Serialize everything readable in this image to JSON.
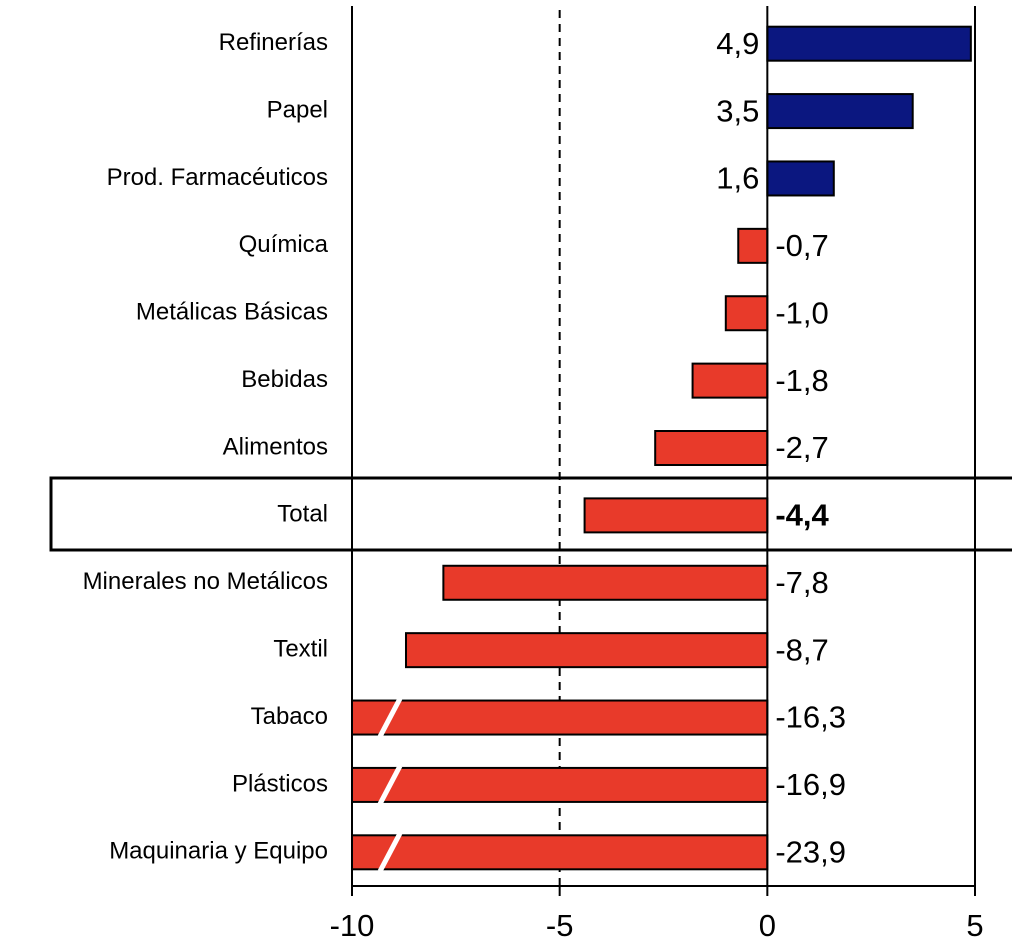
{
  "chart_data": {
    "type": "barh",
    "categories": [
      "Refinerías",
      "Papel",
      "Prod. Farmacéuticos",
      "Química",
      "Metálicas Básicas",
      "Bebidas",
      "Alimentos",
      "Total",
      "Minerales no Metálicos",
      "Textil",
      "Tabaco",
      "Plásticos",
      "Maquinaria y Equipo"
    ],
    "values": [
      4.9,
      3.5,
      1.6,
      -0.7,
      -1.0,
      -1.8,
      -2.7,
      -4.4,
      -7.8,
      -8.7,
      -16.3,
      -16.9,
      -23.9
    ],
    "value_labels": [
      "4,9",
      "3,5",
      "1,6",
      "-0,7",
      "-1,0",
      "-1,8",
      "-2,7",
      "-4,4",
      "-7,8",
      "-8,7",
      "-16,3",
      "-16,9",
      "-23,9"
    ],
    "positive_color": "#0b1780",
    "negative_color": "#e83a2a",
    "xlim": [
      -10,
      5
    ],
    "xticks": [
      -10,
      -5,
      0,
      5
    ],
    "grid": true
  }
}
